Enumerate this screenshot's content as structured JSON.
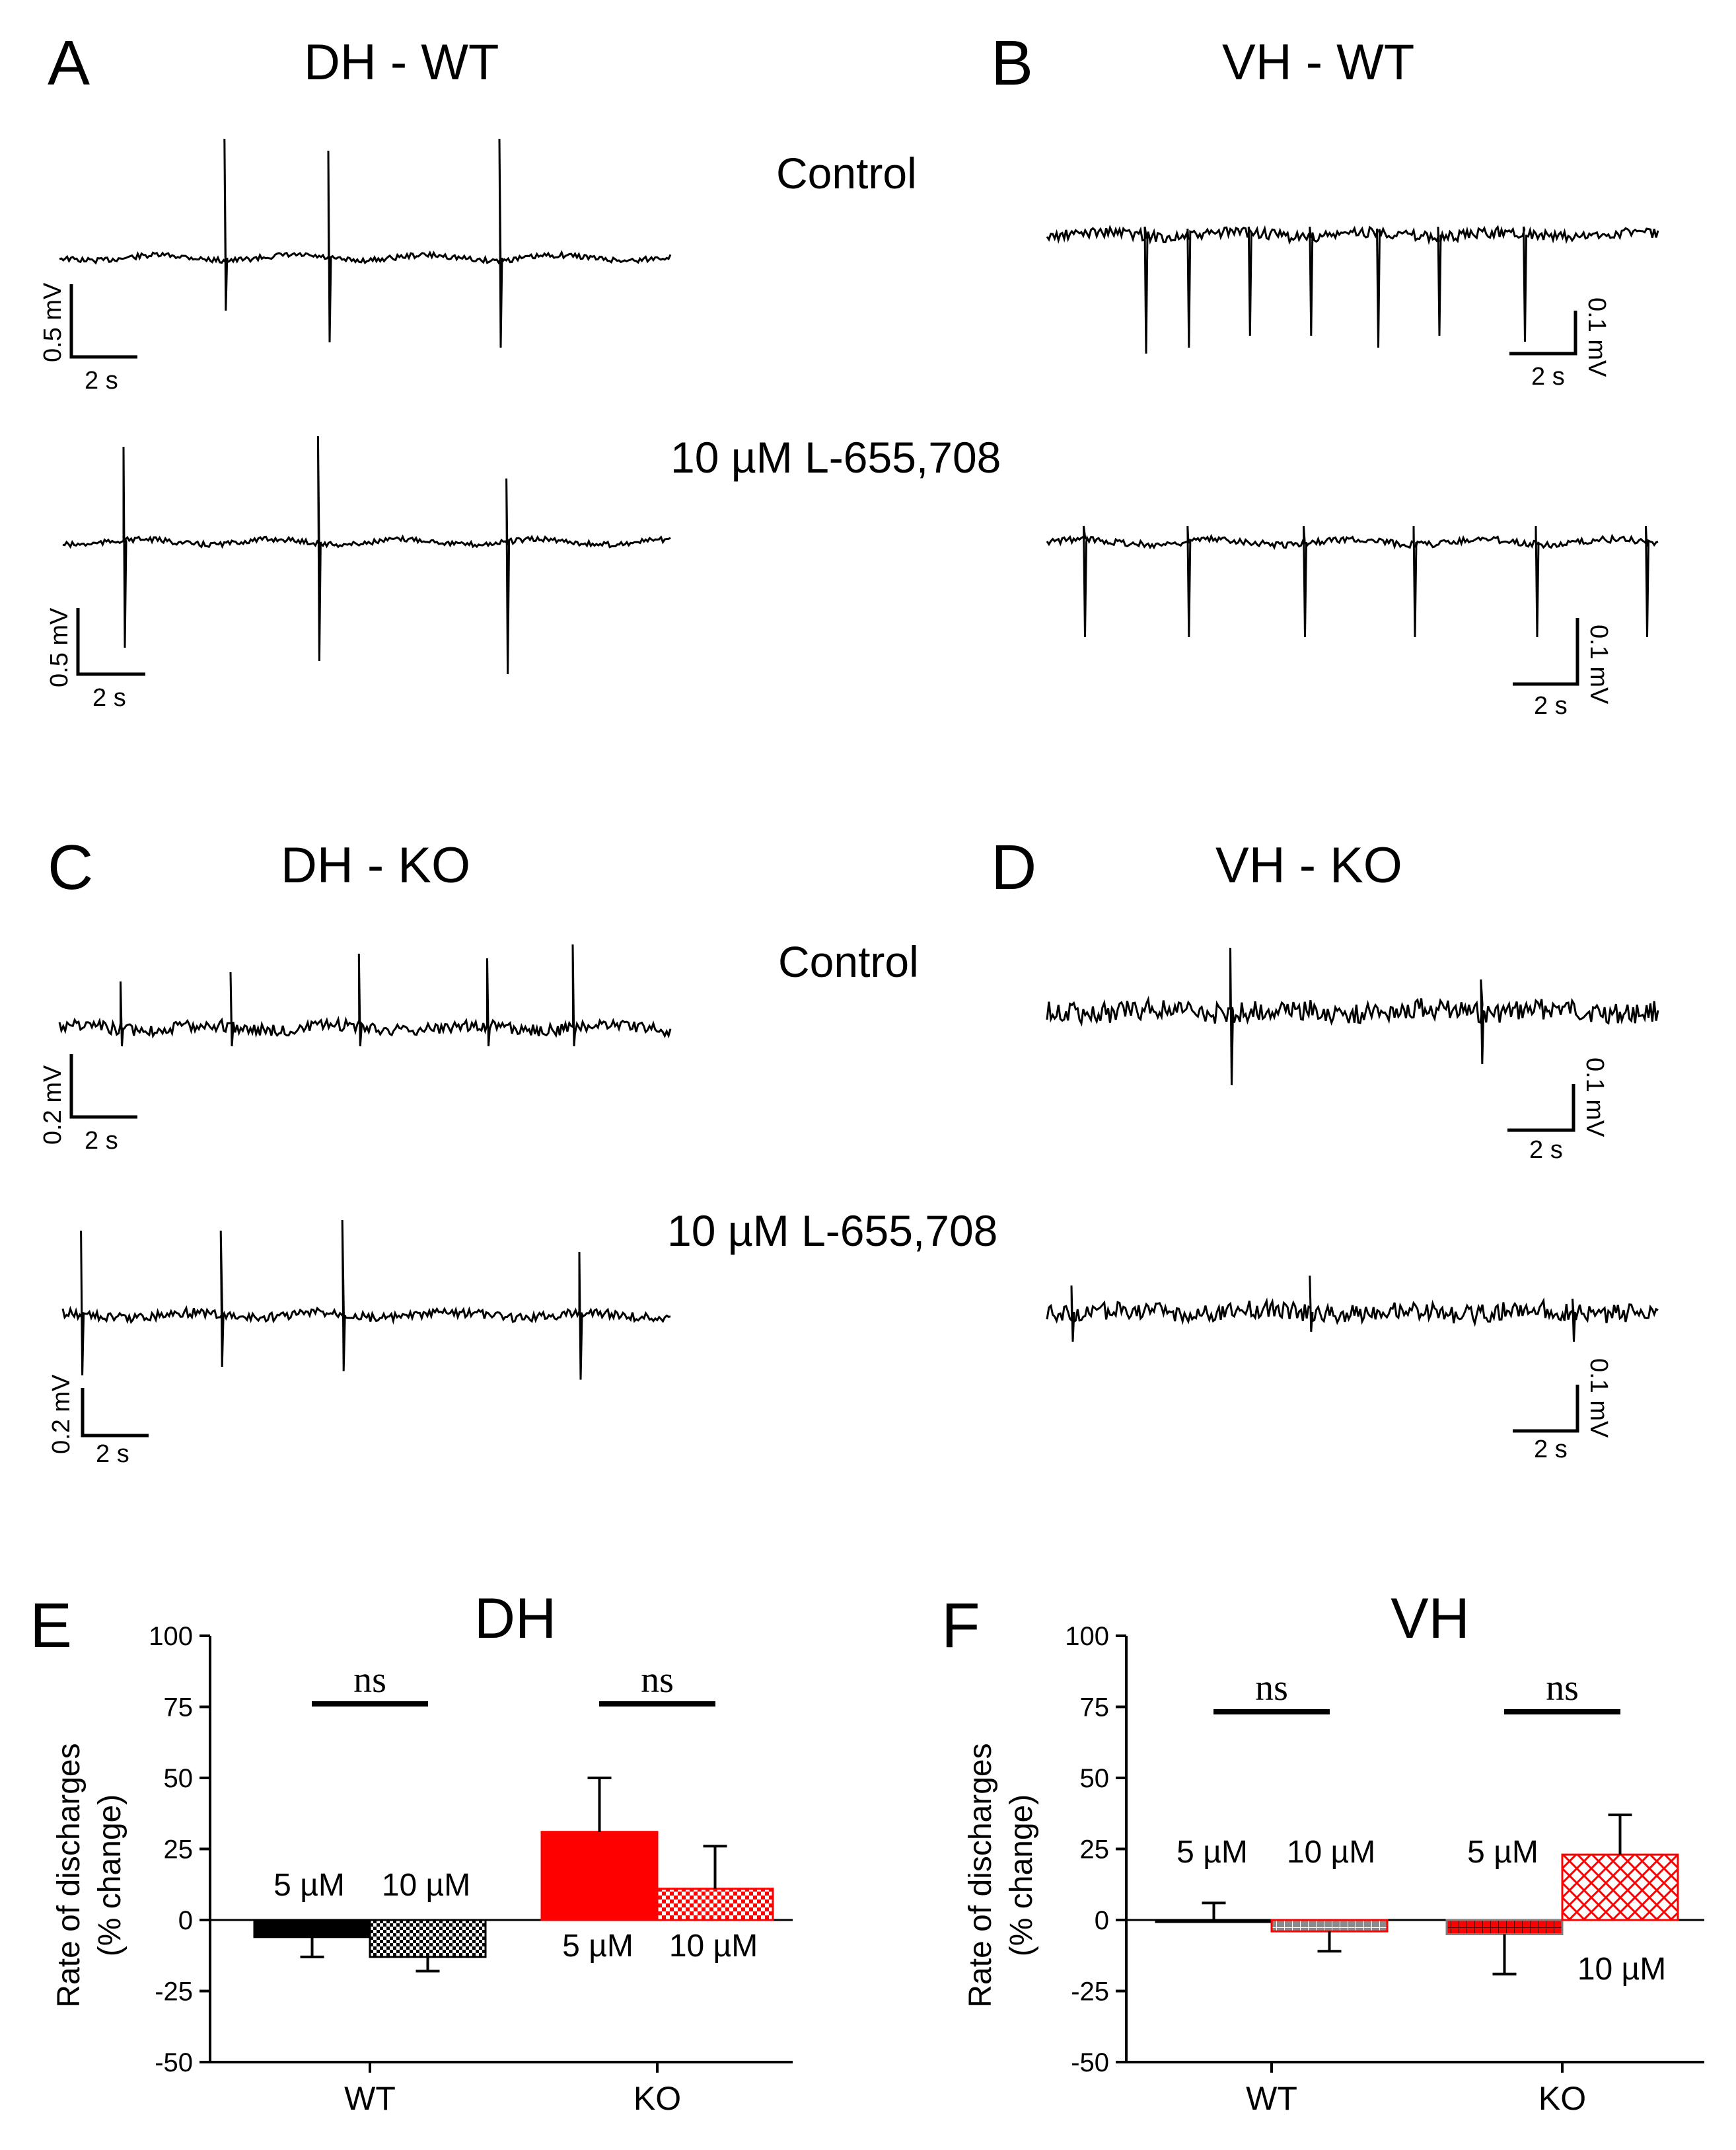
{
  "panels": {
    "A": {
      "letter": "A",
      "title": "DH - WT"
    },
    "B": {
      "letter": "B",
      "title": "VH - WT"
    },
    "C": {
      "letter": "C",
      "title": "DH - KO"
    },
    "D": {
      "letter": "D",
      "title": "VH - KO"
    },
    "E": {
      "letter": "E"
    },
    "F": {
      "letter": "F"
    }
  },
  "conditions": {
    "control": "Control",
    "drug": "10 µM L-655,708"
  },
  "scale_bars": {
    "a_ctrl": {
      "v": "0.5 mV",
      "t": "2 s"
    },
    "a_drug": {
      "v": "0.5 mV",
      "t": "2 s"
    },
    "b_ctrl": {
      "v": "0.1 mV",
      "t": "2 s"
    },
    "b_drug": {
      "v": "0.1 mV",
      "t": "2 s"
    },
    "c_ctrl": {
      "v": "0.2 mV",
      "t": "2 s"
    },
    "c_drug": {
      "v": "0.2 mV",
      "t": "2 s"
    },
    "d_ctrl": {
      "v": "0.1 mV",
      "t": "2 s"
    },
    "d_drug": {
      "v": "0.1 mV",
      "t": "2 s"
    }
  },
  "traces": [
    {
      "id": "a_ctrl",
      "spikes": [
        0.27,
        0.44,
        0.72
      ],
      "up": [
        1.0,
        0.9,
        1.0
      ],
      "down": [
        0.5,
        0.8,
        0.85
      ],
      "noise": 0.04
    },
    {
      "id": "a_drug",
      "spikes": [
        0.1,
        0.42,
        0.73
      ],
      "up": [
        0.9,
        1.0,
        0.6
      ],
      "down": [
        0.8,
        0.9,
        1.0
      ],
      "noise": 0.04
    },
    {
      "id": "b_ctrl",
      "spikes": [
        0.16,
        0.23,
        0.33,
        0.43,
        0.54,
        0.64,
        0.78
      ],
      "up": [
        0.2,
        0.15,
        0.2,
        0.2,
        0.15,
        0.2,
        0.2
      ],
      "down": [
        1.0,
        0.95,
        0.85,
        0.85,
        0.95,
        0.85,
        0.9
      ],
      "noise": 0.08
    },
    {
      "id": "b_drug",
      "spikes": [
        0.06,
        0.23,
        0.42,
        0.6,
        0.8,
        0.98
      ],
      "up": [
        0.3,
        0.3,
        0.3,
        0.3,
        0.3,
        0.3
      ],
      "down": [
        0.9,
        0.9,
        0.9,
        0.9,
        0.9,
        0.9
      ],
      "noise": 0.05
    },
    {
      "id": "c_ctrl",
      "spikes": [
        0.1,
        0.28,
        0.49,
        0.7,
        0.84
      ],
      "up": [
        0.5,
        0.6,
        0.8,
        0.75,
        0.9
      ],
      "down": [
        0.4,
        0.4,
        0.4,
        0.4,
        0.4
      ],
      "noise": 0.09
    },
    {
      "id": "c_drug",
      "spikes": [
        0.03,
        0.26,
        0.46,
        0.85
      ],
      "up": [
        0.8,
        0.8,
        0.9,
        0.6
      ],
      "down": [
        0.7,
        0.6,
        0.65,
        0.75
      ],
      "noise": 0.07
    },
    {
      "id": "d_ctrl",
      "spikes": [
        0.3,
        0.71
      ],
      "up": [
        0.6,
        0.3
      ],
      "down": [
        0.7,
        0.5
      ],
      "noise": 0.16
    },
    {
      "id": "d_drug",
      "spikes": [
        0.04,
        0.43,
        0.86
      ],
      "up": [
        0.4,
        0.55,
        0.2
      ],
      "down": [
        0.3,
        0.2,
        0.3
      ],
      "noise": 0.14
    }
  ],
  "chart_data": [
    {
      "panel": "E",
      "type": "bar",
      "title": "DH",
      "ylabel_line1": "Rate of discharges",
      "ylabel_line2": "(% change)",
      "categories": [
        "WT",
        "KO"
      ],
      "ylim": [
        -50,
        100
      ],
      "yticks": [
        "100",
        "75",
        "50",
        "25",
        "0",
        "-25",
        "-50"
      ],
      "series": [
        {
          "name": "5 µM",
          "values": [
            -6,
            31
          ],
          "errors": [
            7,
            19
          ]
        },
        {
          "name": "10 µM",
          "values": [
            -13,
            11
          ],
          "errors": [
            5,
            15
          ]
        }
      ],
      "bar_colors": [
        [
          "#000000",
          "#000000"
        ],
        [
          "#ff0000",
          "#ff0000"
        ]
      ],
      "significance": [
        "ns",
        "ns"
      ],
      "bar_labels": [
        [
          "5 µM",
          "10 µM"
        ],
        [
          "5 µM",
          "10 µM"
        ]
      ]
    },
    {
      "panel": "F",
      "type": "bar",
      "title": "VH",
      "ylabel_line1": "Rate of discharges",
      "ylabel_line2": "(% change)",
      "categories": [
        "WT",
        "KO"
      ],
      "ylim": [
        -50,
        100
      ],
      "yticks": [
        "100",
        "75",
        "50",
        "25",
        "0",
        "-25",
        "-50"
      ],
      "series": [
        {
          "name": "5 µM",
          "values": [
            0,
            -5
          ],
          "errors": [
            6,
            14
          ]
        },
        {
          "name": "10 µM",
          "values": [
            -4,
            23
          ],
          "errors": [
            7,
            14
          ]
        }
      ],
      "bar_colors": [
        [
          "#000000",
          "#ff0000"
        ],
        [
          "#808080",
          "#ff0000"
        ]
      ],
      "significance": [
        "ns",
        "ns"
      ],
      "bar_labels": [
        [
          "5 µM",
          "10 µM"
        ],
        [
          "5 µM",
          "10 µM"
        ]
      ]
    }
  ]
}
